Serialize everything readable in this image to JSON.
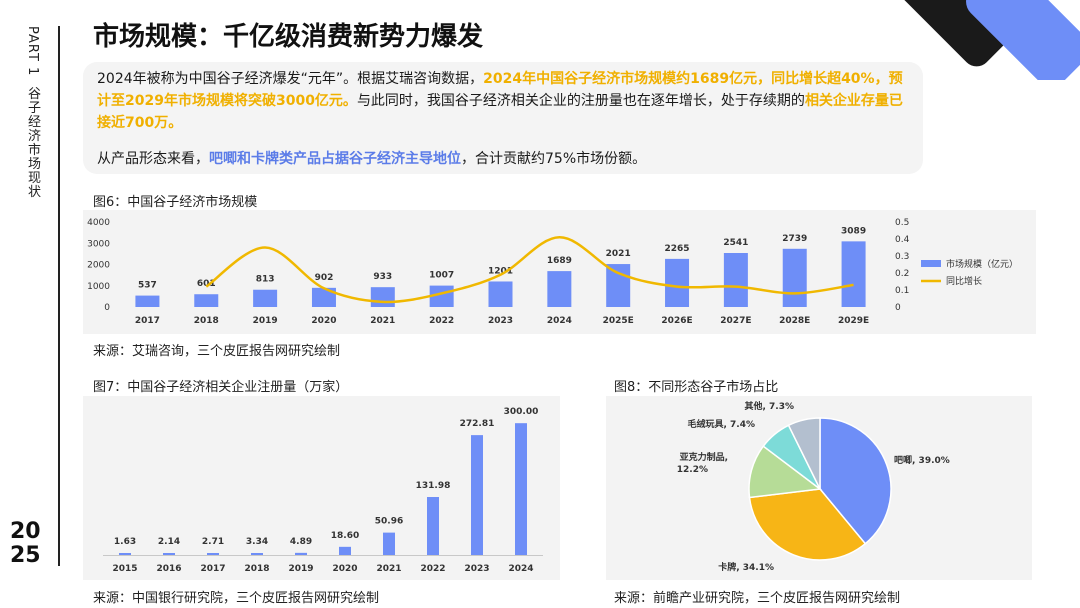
{
  "sidebar": {
    "part_label": "PART 1",
    "section": "谷子经济市场现状",
    "year_top": "20",
    "year_bottom": "25"
  },
  "page_title": "市场规模：千亿级消费新势力爆发",
  "intro": {
    "p1_a": "2024年被称为中国谷子经济爆发“元年”。根据艾瑞咨询数据，",
    "p1_hl1": "2024年中国谷子经济市场规模约1689亿元，同比增长超40%，预计至2029年市场规模将突破3000亿元。",
    "p1_b": "与此同时，我国谷子经济相关企业的注册量也在逐年增长，处于存续期的",
    "p1_hl2": "相关企业存量已接近700万。",
    "p2_a": "从产品形态来看，",
    "p2_hl": "吧唧和卡牌类产品占据谷子经济主导地位",
    "p2_b": "，合计贡献约75%市场份额。"
  },
  "colors": {
    "bar": "#6e8ef7",
    "line": "#f0b800",
    "accent": "#5b7ce8",
    "pie": [
      "#6e8ef7",
      "#f7b516",
      "#b6dc97",
      "#7ddbd8",
      "#b3bfcf"
    ]
  },
  "fig6": {
    "caption": "图6：中国谷子经济市场规模",
    "source": "来源：艾瑞咨询，三个皮匠报告网研究绘制"
  },
  "fig7": {
    "caption": "图7：中国谷子经济相关企业注册量（万家）",
    "source": "来源：中国银行研究院，三个皮匠报告网研究绘制"
  },
  "fig8": {
    "caption": "图8：不同形态谷子市场占比",
    "source": "来源：前瞻产业研究院，三个皮匠报告网研究绘制"
  },
  "chart_data": [
    {
      "type": "bar",
      "categories": [
        "2017",
        "2018",
        "2019",
        "2020",
        "2021",
        "2022",
        "2023",
        "2024",
        "2025E",
        "2026E",
        "2027E",
        "2028E",
        "2029E"
      ],
      "series": [
        {
          "name": "市场规模（亿元）",
          "type": "bar",
          "axis": "left",
          "values": [
            537,
            601,
            813,
            902,
            933,
            1007,
            1201,
            1689,
            2021,
            2265,
            2541,
            2739,
            3089
          ]
        },
        {
          "name": "同比增长",
          "type": "line",
          "axis": "right",
          "values": [
            null,
            0.12,
            0.35,
            0.11,
            0.03,
            0.08,
            0.19,
            0.41,
            0.2,
            0.12,
            0.12,
            0.08,
            0.13
          ]
        }
      ],
      "ylim_left": [
        0,
        4000
      ],
      "yticks_left": [
        "0",
        "1000",
        "2000",
        "3000",
        "4000"
      ],
      "ylim_right": [
        0,
        0.5
      ],
      "yticks_right": [
        "0",
        "0.1",
        "0.2",
        "0.3",
        "0.4",
        "0.5"
      ],
      "legend_position": "right"
    },
    {
      "type": "bar",
      "categories": [
        "2015",
        "2016",
        "2017",
        "2018",
        "2019",
        "2020",
        "2021",
        "2022",
        "2023",
        "2024"
      ],
      "values": [
        1.63,
        2.14,
        2.71,
        3.34,
        4.89,
        18.6,
        50.96,
        131.98,
        272.81,
        300.0
      ],
      "labels": [
        "1.63",
        "2.14",
        "2.71",
        "3.34",
        "4.89",
        "18.60",
        "50.96",
        "131.98",
        "272.81",
        "300.00"
      ],
      "ylim": [
        0,
        330
      ]
    },
    {
      "type": "pie",
      "slices": [
        {
          "label": "吧唧, 39.0%",
          "value": 39.0
        },
        {
          "label": "卡牌, 34.1%",
          "value": 34.1
        },
        {
          "label": "亚克力制品,",
          "label2": "12.2%",
          "value": 12.2
        },
        {
          "label": "毛绒玩具, 7.4%",
          "value": 7.4
        },
        {
          "label": "其他, 7.3%",
          "value": 7.3
        }
      ]
    }
  ]
}
